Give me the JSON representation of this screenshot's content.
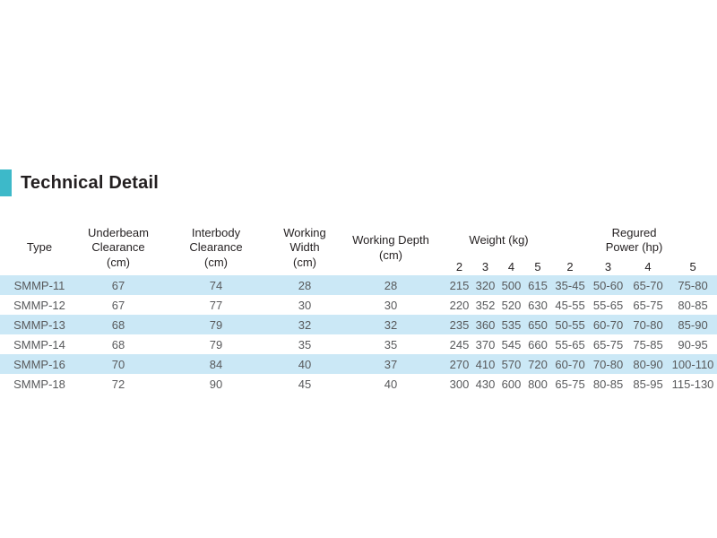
{
  "colors": {
    "accent": "#3db9c9",
    "stripe": "#cbe8f6",
    "heading-text": "#231f20",
    "header-text": "#231f20",
    "body-text": "#58595b"
  },
  "section": {
    "title": "Technical Detail"
  },
  "table": {
    "header": {
      "type": "Type",
      "underbeam": "Underbeam Clearance\n(cm)",
      "interbody": "Interbody\nClearance\n(cm)",
      "working_width": "Working Width\n(cm)",
      "working_depth": "Working Depth\n(cm)",
      "weight_group": "Weight (kg)",
      "power_group": "Regured\nPower (hp)",
      "subcols": [
        "2",
        "3",
        "4",
        "5",
        "2",
        "3",
        "4",
        "5"
      ]
    },
    "rows": [
      {
        "type": "SMMP-11",
        "underbeam": "67",
        "interbody": "74",
        "working_width": "28",
        "working_depth": "28",
        "weight": [
          "215",
          "320",
          "500",
          "615"
        ],
        "power": [
          "35-45",
          "50-60",
          "65-70",
          "75-80"
        ]
      },
      {
        "type": "SMMP-12",
        "underbeam": "67",
        "interbody": "77",
        "working_width": "30",
        "working_depth": "30",
        "weight": [
          "220",
          "352",
          "520",
          "630"
        ],
        "power": [
          "45-55",
          "55-65",
          "65-75",
          "80-85"
        ]
      },
      {
        "type": "SMMP-13",
        "underbeam": "68",
        "interbody": "79",
        "working_width": "32",
        "working_depth": "32",
        "weight": [
          "235",
          "360",
          "535",
          "650"
        ],
        "power": [
          "50-55",
          "60-70",
          "70-80",
          "85-90"
        ]
      },
      {
        "type": "SMMP-14",
        "underbeam": "68",
        "interbody": "79",
        "working_width": "35",
        "working_depth": "35",
        "weight": [
          "245",
          "370",
          "545",
          "660"
        ],
        "power": [
          "55-65",
          "65-75",
          "75-85",
          "90-95"
        ]
      },
      {
        "type": "SMMP-16",
        "underbeam": "70",
        "interbody": "84",
        "working_width": "40",
        "working_depth": "37",
        "weight": [
          "270",
          "410",
          "570",
          "720"
        ],
        "power": [
          "60-70",
          "70-80",
          "80-90",
          "100-110"
        ]
      },
      {
        "type": "SMMP-18",
        "underbeam": "72",
        "interbody": "90",
        "working_width": "45",
        "working_depth": "40",
        "weight": [
          "300",
          "430",
          "600",
          "800"
        ],
        "power": [
          "65-75",
          "80-85",
          "85-95",
          "115-130"
        ]
      }
    ]
  }
}
